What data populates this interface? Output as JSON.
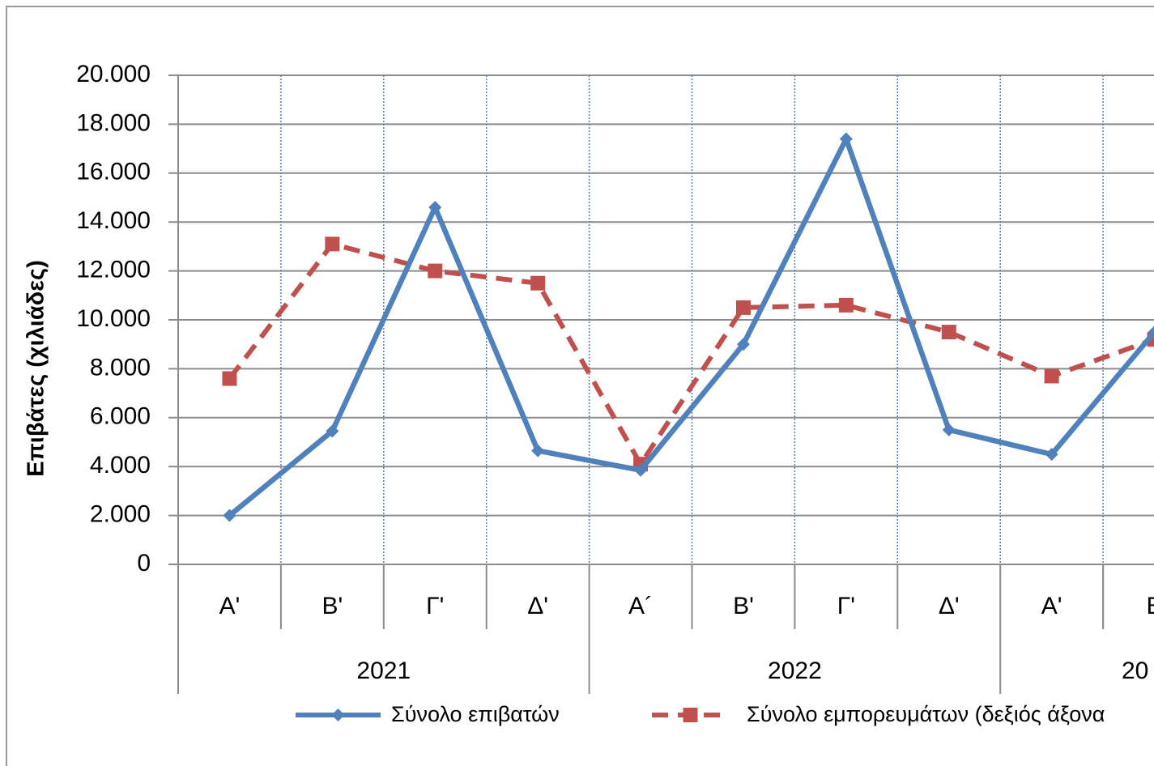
{
  "chart_data": {
    "type": "line",
    "y_label": "Επιβάτες  (χιλιάδες)",
    "categories": [
      "Α'",
      "Β'",
      "Γ'",
      "Δ'",
      "Α´",
      "Β'",
      "Γ'",
      "Δ'",
      "Α'",
      "Β"
    ],
    "years": [
      "2021",
      "2022",
      "20"
    ],
    "series": [
      {
        "name": "Σύνολο επιβατών",
        "color": "#4f81bd",
        "marker": "diamond",
        "dashed": false,
        "values": [
          2000,
          5450,
          14600,
          4650,
          3850,
          9000,
          17400,
          5500,
          4500,
          9500
        ]
      },
      {
        "name": "Σύνολο εμπορευμάτων (δεξιός άξονα",
        "color": "#c0504d",
        "marker": "square",
        "dashed": true,
        "values": [
          7600,
          13100,
          12000,
          11500,
          4100,
          10500,
          10600,
          9500,
          7700,
          9200
        ]
      }
    ],
    "ylim": [
      0,
      20000
    ],
    "yticks": [
      0,
      {
        "value": 2000,
        "label": "2.000"
      },
      {
        "value": 4000,
        "label": "4.000"
      },
      {
        "value": 6000,
        "label": "6.000"
      },
      {
        "value": 8000,
        "label": "8.000"
      },
      {
        "value": 10000,
        "label": "10.000"
      },
      {
        "value": 12000,
        "label": "12.000"
      },
      {
        "value": 14000,
        "label": "14.000"
      },
      {
        "value": 16000,
        "label": "16.000"
      },
      {
        "value": 18000,
        "label": "18.000"
      },
      {
        "value": 20000,
        "label": "20.000"
      }
    ],
    "grid": true
  }
}
